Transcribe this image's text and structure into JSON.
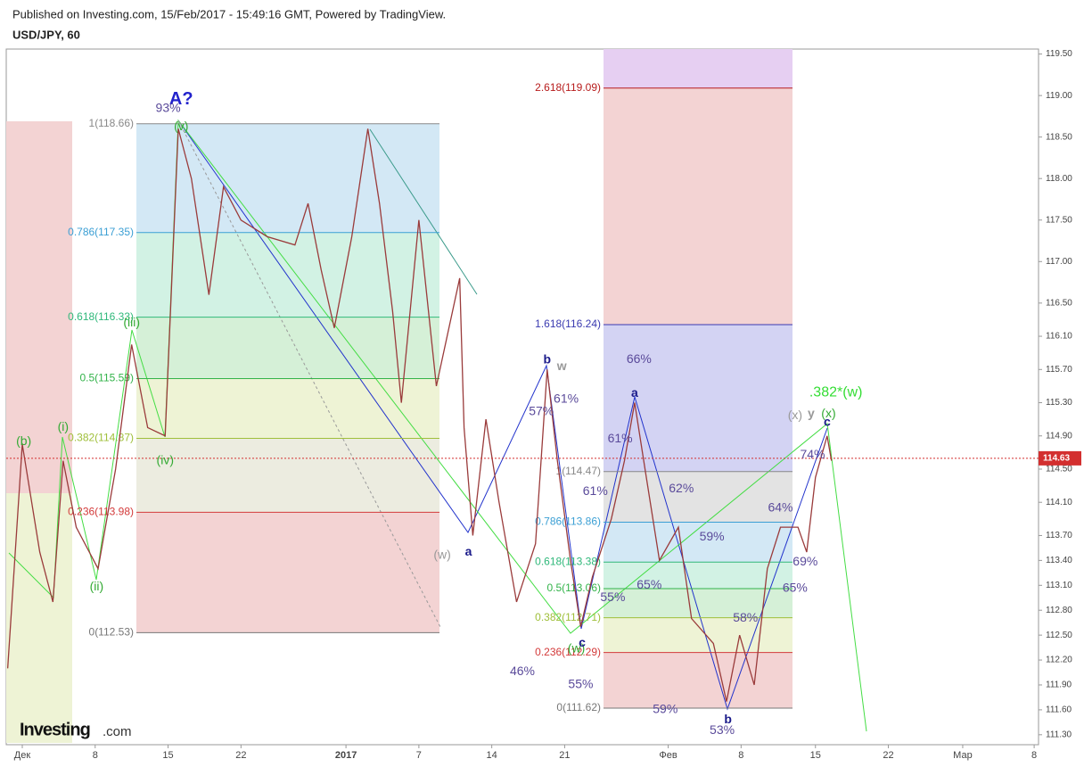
{
  "header": {
    "published": "Published on Investing.com, 15/Feb/2017 - 15:49:16 GMT, Powered by TradingView.",
    "symbol": "USD/JPY, 60",
    "logo": "Investing",
    "logo_suffix": ".com"
  },
  "chart_data": {
    "type": "line",
    "x": [
      -1.0,
      0,
      1.2,
      2.1,
      2.8,
      3.7,
      5.2,
      6.4,
      7.5,
      8.6,
      9.8,
      10.7,
      11.6,
      12.8,
      13.8,
      15.0,
      16.8,
      18.7,
      19.6,
      20.5,
      21.4,
      22.6,
      23.7,
      24.5,
      25.4,
      26.0,
      27.2,
      28.4,
      30.0,
      30.3,
      30.9,
      31.8,
      32.7,
      33.9,
      35.2,
      36.0,
      36.7,
      37.6,
      38.3,
      39.1,
      40.4,
      41.3,
      42.0,
      42.8,
      43.7,
      45.0,
      45.9,
      47.4,
      48.3,
      49.2,
      50.2,
      51.1,
      52.0,
      53.2,
      53.8,
      54.4,
      55.2,
      55.5
    ],
    "series": [
      {
        "name": "USD/JPY",
        "color": "#9a3b3b",
        "values": [
          112.1,
          114.8,
          113.5,
          112.9,
          114.6,
          113.8,
          113.3,
          114.5,
          116.0,
          115.0,
          114.9,
          118.6,
          118.0,
          116.6,
          117.9,
          117.5,
          117.3,
          117.2,
          117.7,
          116.9,
          116.2,
          117.3,
          118.6,
          117.7,
          116.4,
          115.3,
          117.5,
          115.5,
          116.8,
          115.0,
          113.7,
          115.1,
          114.1,
          112.9,
          113.6,
          115.7,
          114.6,
          113.4,
          112.6,
          113.2,
          113.9,
          114.6,
          115.3,
          114.4,
          113.4,
          113.8,
          112.7,
          112.4,
          111.7,
          112.5,
          111.9,
          113.3,
          113.8,
          113.8,
          113.5,
          114.4,
          114.9,
          114.6
        ]
      }
    ],
    "xlim": [
      -1.1,
      69.7
    ],
    "ylim": [
      111.18,
      119.56
    ],
    "xticks": [
      {
        "value": 0,
        "label": "Дек"
      },
      {
        "value": 5,
        "label": "8"
      },
      {
        "value": 10,
        "label": "15"
      },
      {
        "value": 15,
        "label": "22"
      },
      {
        "value": 22.2,
        "label": "2017"
      },
      {
        "value": 27.2,
        "label": "7"
      },
      {
        "value": 32.2,
        "label": "14"
      },
      {
        "value": 37.2,
        "label": "21"
      },
      {
        "value": 44.3,
        "label": "Фев"
      },
      {
        "value": 49.3,
        "label": "8"
      },
      {
        "value": 54.4,
        "label": "15"
      },
      {
        "value": 59.4,
        "label": "22"
      },
      {
        "value": 64.5,
        "label": "Мар"
      },
      {
        "value": 69.4,
        "label": "8"
      }
    ],
    "yticks": [
      {
        "value": 111.3,
        "label": "111.30"
      },
      {
        "value": 111.6,
        "label": "111.60"
      },
      {
        "value": 111.9,
        "label": "111.90"
      },
      {
        "value": 112.2,
        "label": "112.20"
      },
      {
        "value": 112.5,
        "label": "112.50"
      },
      {
        "value": 112.8,
        "label": "112.80"
      },
      {
        "value": 113.1,
        "label": "113.10"
      },
      {
        "value": 113.4,
        "label": "113.40"
      },
      {
        "value": 113.7,
        "label": "113.70"
      },
      {
        "value": 114.1,
        "label": "114.10"
      },
      {
        "value": 114.5,
        "label": "114.50"
      },
      {
        "value": 114.9,
        "label": "114.90"
      },
      {
        "value": 115.3,
        "label": "115.30"
      },
      {
        "value": 115.7,
        "label": "115.70"
      },
      {
        "value": 116.1,
        "label": "116.10"
      },
      {
        "value": 116.5,
        "label": "116.50"
      },
      {
        "value": 117.0,
        "label": "117.00"
      },
      {
        "value": 117.5,
        "label": "117.50"
      },
      {
        "value": 118.0,
        "label": "118.00"
      },
      {
        "value": 118.5,
        "label": "118.50"
      },
      {
        "value": 119.0,
        "label": "119.00"
      },
      {
        "value": 119.5,
        "label": "119.50"
      }
    ],
    "last_price": {
      "value": 114.63,
      "label": "114.63",
      "color": "#d32f2f"
    },
    "fib_left": [
      {
        "label": "1(118.66)",
        "value": 118.66,
        "color": "#888888",
        "fill": "#e3e3e3"
      },
      {
        "label": "0.786(117.35)",
        "value": 117.35,
        "color": "#3b9fd4",
        "fill": "#d3e8f5"
      },
      {
        "label": "0.618(116.33)",
        "value": 116.33,
        "color": "#2fb87a",
        "fill": "#d2f2e4"
      },
      {
        "label": "0.5(115.59)",
        "value": 115.59,
        "color": "#33b34a",
        "fill": "#d5f0d7"
      },
      {
        "label": "0.382(114.87)",
        "value": 114.87,
        "color": "#9fbf3a",
        "fill": "#eef3d5"
      },
      {
        "label": "0.236(113.98)",
        "value": 113.98,
        "color": "#d33a3a",
        "fill": "#ecece0"
      },
      {
        "label": "0(112.53)",
        "value": 112.53,
        "color": "#777777",
        "fill": "#f3d3d3"
      }
    ],
    "fib_right": [
      {
        "label": "2.618(119.09)",
        "value": 119.09,
        "color": "#b71c1c",
        "fill": "#e6cff2"
      },
      {
        "label": "1.618(116.24)",
        "value": 116.24,
        "color": "#3a3ab0",
        "fill": "#f3d3d3"
      },
      {
        "label": "1(114.47)",
        "value": 114.47,
        "color": "#888888",
        "fill": "#d3d3f3"
      },
      {
        "label": "0.786(113.86)",
        "value": 113.86,
        "color": "#3b9fd4",
        "fill": "#e3e3e3"
      },
      {
        "label": "0.618(113.38)",
        "value": 113.38,
        "color": "#2fb87a",
        "fill": "#d3e8f5"
      },
      {
        "label": "0.5(113.06)",
        "value": 113.06,
        "color": "#33b34a",
        "fill": "#d2f2e4"
      },
      {
        "label": "0.382(112.71)",
        "value": 112.71,
        "color": "#9fbf3a",
        "fill": "#d5f0d7"
      },
      {
        "label": "0.236(112.29)",
        "value": 112.29,
        "color": "#d33a3a",
        "fill": "#eef3d5"
      },
      {
        "label": "0(111.62)",
        "value": 111.62,
        "color": "#777777",
        "fill": "#f3d3d3"
      }
    ],
    "annotations": [
      {
        "label": "A?",
        "x": 10.9,
        "y": 118.95,
        "color": "#2222cc"
      },
      {
        "label": "93%",
        "x": 10.0,
        "y": 118.84,
        "color": "#5a4a9a"
      },
      {
        "label": "(v)",
        "x": 10.9,
        "y": 118.62,
        "color": "#33aa33"
      },
      {
        "label": "(iii)",
        "x": 7.5,
        "y": 116.26,
        "color": "#33aa33"
      },
      {
        "label": "(iv)",
        "x": 9.8,
        "y": 114.6,
        "color": "#33aa33"
      },
      {
        "label": "(b)",
        "x": 0.1,
        "y": 114.83,
        "color": "#33aa33"
      },
      {
        "label": "(i)",
        "x": 2.8,
        "y": 115.0,
        "color": "#33aa33"
      },
      {
        "label": "(ii)",
        "x": 5.1,
        "y": 113.08,
        "color": "#33aa33"
      },
      {
        "label": "(w)",
        "x": 28.8,
        "y": 113.46,
        "color": "#999999"
      },
      {
        "label": "a",
        "x": 30.6,
        "y": 113.5,
        "color": "#1a1a8a"
      },
      {
        "label": "b",
        "x": 36.0,
        "y": 115.81,
        "color": "#1a1a8a"
      },
      {
        "label": "w",
        "x": 37.0,
        "y": 115.73,
        "color": "#999999"
      },
      {
        "label": "57%",
        "x": 35.6,
        "y": 115.19,
        "color": "#5a4a9a"
      },
      {
        "label": "61%",
        "x": 37.3,
        "y": 115.34,
        "color": "#5a4a9a"
      },
      {
        "label": "a",
        "x": 42.0,
        "y": 115.41,
        "color": "#1a1a8a"
      },
      {
        "label": "66%",
        "x": 42.3,
        "y": 115.82,
        "color": "#5a4a9a"
      },
      {
        "label": "61%",
        "x": 41.0,
        "y": 114.86,
        "color": "#5a4a9a"
      },
      {
        "label": "61%",
        "x": 39.3,
        "y": 114.23,
        "color": "#5a4a9a"
      },
      {
        "label": "62%",
        "x": 45.2,
        "y": 114.26,
        "color": "#5a4a9a"
      },
      {
        "label": "59%",
        "x": 47.3,
        "y": 113.68,
        "color": "#5a4a9a"
      },
      {
        "label": "55%",
        "x": 40.5,
        "y": 112.95,
        "color": "#5a4a9a"
      },
      {
        "label": "65%",
        "x": 43.0,
        "y": 113.1,
        "color": "#5a4a9a"
      },
      {
        "label": "58%",
        "x": 49.6,
        "y": 112.7,
        "color": "#5a4a9a"
      },
      {
        "label": "46%",
        "x": 34.3,
        "y": 112.06,
        "color": "#5a4a9a"
      },
      {
        "label": "(w)",
        "x": 38.0,
        "y": 112.33,
        "color": "#33aa33"
      },
      {
        "label": "c",
        "x": 38.4,
        "y": 112.4,
        "color": "#1a1a8a"
      },
      {
        "label": "55%",
        "x": 38.3,
        "y": 111.9,
        "color": "#5a4a9a"
      },
      {
        "label": "59%",
        "x": 44.1,
        "y": 111.6,
        "color": "#5a4a9a"
      },
      {
        "label": "b",
        "x": 48.4,
        "y": 111.48,
        "color": "#1a1a8a"
      },
      {
        "label": "53%",
        "x": 48.0,
        "y": 111.35,
        "color": "#5a4a9a"
      },
      {
        "label": "64%",
        "x": 52.0,
        "y": 114.03,
        "color": "#5a4a9a"
      },
      {
        "label": "69%",
        "x": 53.7,
        "y": 113.38,
        "color": "#5a4a9a"
      },
      {
        "label": "65%",
        "x": 53.0,
        "y": 113.06,
        "color": "#5a4a9a"
      },
      {
        "label": "74%",
        "x": 54.2,
        "y": 114.67,
        "color": "#5a4a9a"
      },
      {
        "label": "(x)",
        "x": 53.0,
        "y": 115.14,
        "color": "#999999"
      },
      {
        "label": "y",
        "x": 54.1,
        "y": 115.16,
        "color": "#999999"
      },
      {
        "label": "(x)",
        "x": 55.3,
        "y": 115.16,
        "color": "#33aa33"
      },
      {
        "label": "c",
        "x": 55.2,
        "y": 115.06,
        "color": "#1a1a8a"
      },
      {
        "label": ".382*(w)",
        "x": 55.8,
        "y": 115.42,
        "color": "#33dd33"
      }
    ]
  }
}
